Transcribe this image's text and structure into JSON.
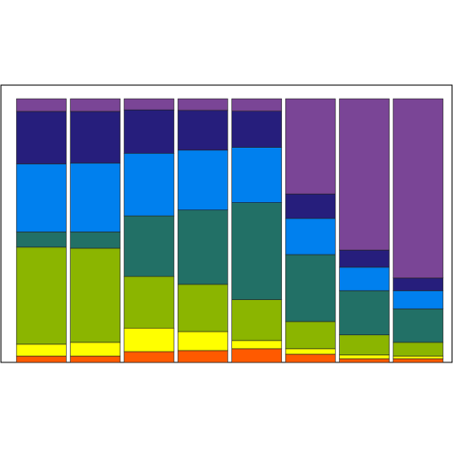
{
  "chart_data": {
    "type": "stacked-bar",
    "categories": [
      null,
      null,
      null,
      null,
      null,
      null,
      null,
      null
    ],
    "ylim": [
      0,
      100
    ],
    "series": [
      {
        "color": "#ff5a00",
        "values": [
          2.4,
          2.4,
          4.1,
          4.5,
          5.2,
          3.1,
          1.4,
          1.4
        ]
      },
      {
        "color": "#ffff00",
        "values": [
          4.5,
          5.2,
          8.9,
          7.2,
          3.1,
          2.1,
          1.4,
          1.0
        ]
      },
      {
        "color": "#8bb500",
        "values": [
          36.8,
          35.7,
          19.6,
          17.9,
          15.5,
          10.3,
          7.6,
          5.2
        ]
      },
      {
        "color": "#227066",
        "values": [
          5.8,
          6.2,
          23.0,
          28.2,
          36.8,
          25.4,
          16.8,
          12.7
        ]
      },
      {
        "color": "#0080ee",
        "values": [
          25.8,
          26.1,
          23.7,
          22.7,
          21.0,
          13.7,
          8.9,
          6.9
        ]
      },
      {
        "color": "#261e7c",
        "values": [
          19.9,
          19.6,
          16.5,
          15.1,
          13.7,
          9.3,
          6.5,
          4.8
        ]
      },
      {
        "color": "#7a4596",
        "values": [
          4.8,
          4.8,
          4.2,
          4.4,
          4.7,
          36.1,
          57.4,
          68.0
        ]
      }
    ]
  }
}
